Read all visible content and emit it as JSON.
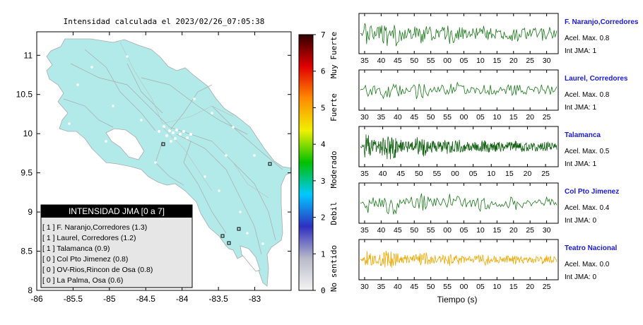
{
  "map": {
    "title": "Intensidad calculada el 2023/02/26_07:05:38",
    "x_ticks": [
      "-86",
      "-85.5",
      "-85",
      "-84.5",
      "-84",
      "-83.5",
      "-83"
    ],
    "y_ticks": [
      "11",
      "10.5",
      "10",
      "9.5",
      "9",
      "8.5",
      "8"
    ],
    "xlim": [
      -86,
      -82.5
    ],
    "ylim": [
      8,
      11.3
    ]
  },
  "colorbar": {
    "ticks": [
      "0",
      "1",
      "2",
      "3",
      "4",
      "5",
      "6",
      "7"
    ],
    "labels": [
      "Muy Fuerte",
      "Fuerte",
      "Moderado",
      "Debil",
      "No sentido"
    ],
    "colors": [
      "#f4f4f4",
      "#b9b9c8",
      "#2f2fc0",
      "#00c8ff",
      "#00c000",
      "#f0f000",
      "#ff8c00",
      "#e00000",
      "#300000"
    ]
  },
  "legend_box": {
    "title": "INTENSIDAD JMA [0 a 7]",
    "items": [
      "[ 1 ]  F. Naranjo,Corredores (1.3)",
      "[ 1 ]  Laurel, Corredores (1.2)",
      "[ 1 ]  Talamanca (0.9)",
      "[ 0 ]  Col Pto Jimenez (0.8)",
      "[ 0 ]  OV-Rios,Rincon de Osa (0.8)",
      "[ 0 ]  La Palma, Osa (0.6)"
    ]
  },
  "traces": [
    {
      "station": "F. Naranjo,Corredores",
      "accel": "Acel. Max. 0.8",
      "jma": "Int JMA: 1",
      "ticks": [
        "35",
        "40",
        "45",
        "50",
        "55",
        "00",
        "05",
        "10",
        "15",
        "20",
        "25",
        "30"
      ],
      "color": "#1a7a1a",
      "amp": 1.0,
      "decay": 0.55,
      "dense": 1.0
    },
    {
      "station": "Laurel, Corredores",
      "accel": "Acel. Max. 0.8",
      "jma": "Int JMA: 1",
      "ticks": [
        "30",
        "35",
        "40",
        "45",
        "50",
        "55",
        "00",
        "05",
        "10",
        "15",
        "20",
        "25"
      ],
      "color": "#1a7a1a",
      "amp": 0.75,
      "decay": 0.7,
      "dense": 0.7
    },
    {
      "station": "Talamanca",
      "accel": "Acel. Max. 0.5",
      "jma": "Int JMA: 1",
      "ticks": [
        "35",
        "40",
        "45",
        "50",
        "55",
        "00",
        "05",
        "10",
        "15",
        "20",
        "25"
      ],
      "color": "#0f5f0f",
      "amp": 0.95,
      "decay": 0.35,
      "dense": 2.2
    },
    {
      "station": "Col Pto Jimenez",
      "accel": "Acel. Max. 0.4",
      "jma": "Int JMA: 0",
      "ticks": [
        "35",
        "40",
        "45",
        "50",
        "55",
        "00",
        "05",
        "10",
        "15",
        "20",
        "25",
        "30"
      ],
      "color": "#1a7a1a",
      "amp": 0.85,
      "decay": 0.6,
      "dense": 0.7
    },
    {
      "station": "Teatro Nacional",
      "accel": "Acel. Max. 0.0",
      "jma": "Int JMA: 0",
      "ticks": [
        "30",
        "35",
        "40",
        "45",
        "50",
        "55",
        "00",
        "05",
        "10",
        "15",
        "20",
        "25"
      ],
      "color": "#f0a800",
      "amp": 0.7,
      "decay": 0.45,
      "dense": 1.6
    }
  ],
  "x_axis_label": "Tiempo (s)",
  "chart_data": [
    {
      "type": "scatter",
      "title": "Intensidad calculada el 2023/02/26_07:05:38",
      "xlim": [
        -86,
        -82.5
      ],
      "ylim": [
        8,
        11.3
      ],
      "x_ticks": [
        -86,
        -85.5,
        -85,
        -84.5,
        -84,
        -83.5,
        -83
      ],
      "y_ticks": [
        11,
        10.5,
        10,
        9.5,
        9,
        8.5,
        8
      ],
      "colorbar_range": [
        0,
        7
      ],
      "legend": {
        "title": "INTENSIDAD JMA [0 a 7]",
        "entries": [
          {
            "station": "F. Naranjo,Corredores",
            "jma": 1,
            "value": 1.3
          },
          {
            "station": "Laurel, Corredores",
            "jma": 1,
            "value": 1.2
          },
          {
            "station": "Talamanca",
            "jma": 1,
            "value": 0.9
          },
          {
            "station": "Col Pto Jimenez",
            "jma": 0,
            "value": 0.8
          },
          {
            "station": "OV-Rios,Rincon de Osa",
            "jma": 0,
            "value": 0.8
          },
          {
            "station": "La Palma, Osa",
            "jma": 0,
            "value": 0.6
          }
        ]
      }
    },
    {
      "type": "line",
      "xlabel": "Tiempo (s)",
      "series": [
        {
          "name": "F. Naranjo,Corredores",
          "acel_max": 0.8,
          "int_jma": 1
        },
        {
          "name": "Laurel, Corredores",
          "acel_max": 0.8,
          "int_jma": 1
        },
        {
          "name": "Talamanca",
          "acel_max": 0.5,
          "int_jma": 1
        },
        {
          "name": "Col Pto Jimenez",
          "acel_max": 0.4,
          "int_jma": 0
        },
        {
          "name": "Teatro Nacional",
          "acel_max": 0.0,
          "int_jma": 0
        }
      ]
    }
  ]
}
